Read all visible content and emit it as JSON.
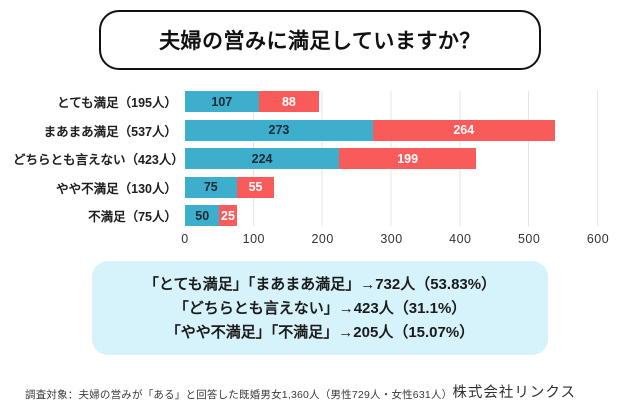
{
  "title": "夫婦の営みに満足していますか？",
  "chart_data": {
    "type": "bar",
    "orientation": "horizontal",
    "stacked": true,
    "title": "夫婦の営みに満足していますか？",
    "categories": [
      "とても満足（195人）",
      "まあまあ満足（537人）",
      "どちらとも言えない（423人）",
      "やや不満足（130人）",
      "不満足（75人）"
    ],
    "series": [
      {
        "name": "segment-1",
        "color": "#3DAECC",
        "label_color": "#1e2a36",
        "values": [
          107,
          273,
          224,
          75,
          50
        ]
      },
      {
        "name": "segment-2",
        "color": "#F95B5B",
        "label_color": "#ffffff",
        "values": [
          88,
          264,
          199,
          55,
          25
        ]
      }
    ],
    "totals": [
      195,
      537,
      423,
      130,
      75
    ],
    "xlim": [
      0,
      600
    ],
    "x_ticks": [
      "0",
      "100",
      "200",
      "300",
      "400",
      "500",
      "600"
    ],
    "grid": true,
    "gridline_color": "#e4e4e4",
    "legend_position": "none"
  },
  "summary_box": {
    "bg_color": "#D6F2FA",
    "lines": [
      "「とても満足」「まあまあ満足」→732人（53.83%）",
      "「どちらとも言えない」→423人（31.1%）",
      "「やや不満足」「不満足」→205人（15.07%）"
    ]
  },
  "footer": {
    "note": "調査対象：夫婦の営みが「ある」と回答した既婚男女1,360人（男性729人・女性631人）",
    "company": "株式会社リンクス"
  }
}
